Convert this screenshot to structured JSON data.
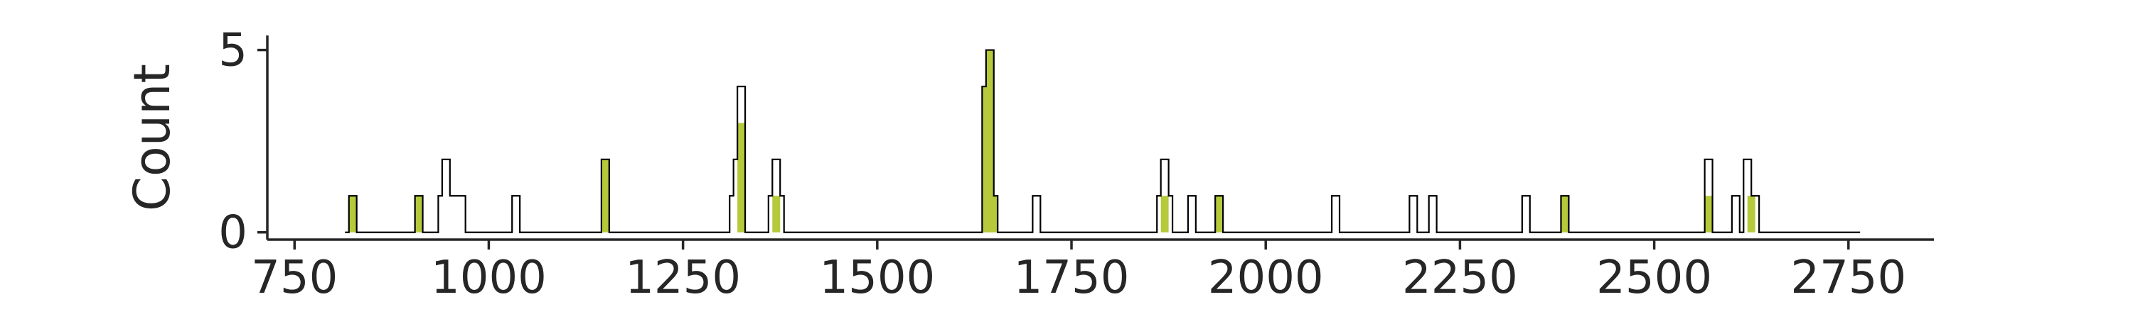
{
  "chart_data": {
    "type": "histogram",
    "xlabel": "",
    "ylabel": "Count",
    "xlim": [
      715,
      2860
    ],
    "ylim": [
      -0.2,
      5.4
    ],
    "xticks": [
      750,
      1000,
      1250,
      1500,
      1750,
      2000,
      2250,
      2500,
      2750
    ],
    "yticks": [
      0,
      5
    ],
    "grid": false,
    "legend": "none",
    "bin_width": 10,
    "x_start": 815,
    "x_end": 2765,
    "series": [
      {
        "style": "step-outline",
        "color": "#000000",
        "bins": [
          {
            "x": 820,
            "count": 1
          },
          {
            "x": 905,
            "count": 1
          },
          {
            "x": 935,
            "count": 1
          },
          {
            "x": 940,
            "count": 2
          },
          {
            "x": 950,
            "count": 1
          },
          {
            "x": 960,
            "count": 1
          },
          {
            "x": 1030,
            "count": 1
          },
          {
            "x": 1145,
            "count": 2
          },
          {
            "x": 1310,
            "count": 1
          },
          {
            "x": 1315,
            "count": 2
          },
          {
            "x": 1320,
            "count": 4
          },
          {
            "x": 1360,
            "count": 1
          },
          {
            "x": 1365,
            "count": 2
          },
          {
            "x": 1370,
            "count": 1
          },
          {
            "x": 1635,
            "count": 4
          },
          {
            "x": 1640,
            "count": 5
          },
          {
            "x": 1645,
            "count": 1
          },
          {
            "x": 1700,
            "count": 1
          },
          {
            "x": 1860,
            "count": 1
          },
          {
            "x": 1865,
            "count": 2
          },
          {
            "x": 1870,
            "count": 1
          },
          {
            "x": 1900,
            "count": 1
          },
          {
            "x": 1935,
            "count": 1
          },
          {
            "x": 2085,
            "count": 1
          },
          {
            "x": 2185,
            "count": 1
          },
          {
            "x": 2210,
            "count": 1
          },
          {
            "x": 2330,
            "count": 1
          },
          {
            "x": 2380,
            "count": 1
          },
          {
            "x": 2565,
            "count": 2
          },
          {
            "x": 2600,
            "count": 1
          },
          {
            "x": 2615,
            "count": 2
          },
          {
            "x": 2625,
            "count": 1
          }
        ]
      },
      {
        "style": "filled",
        "color": "#b5c93a",
        "bins": [
          {
            "x": 820,
            "count": 1
          },
          {
            "x": 905,
            "count": 1
          },
          {
            "x": 1145,
            "count": 2
          },
          {
            "x": 1320,
            "count": 3
          },
          {
            "x": 1365,
            "count": 1
          },
          {
            "x": 1635,
            "count": 4
          },
          {
            "x": 1640,
            "count": 5
          },
          {
            "x": 1645,
            "count": 1
          },
          {
            "x": 1865,
            "count": 1
          },
          {
            "x": 1935,
            "count": 1
          },
          {
            "x": 2380,
            "count": 1
          },
          {
            "x": 2565,
            "count": 1
          },
          {
            "x": 2620,
            "count": 1
          }
        ]
      }
    ]
  }
}
